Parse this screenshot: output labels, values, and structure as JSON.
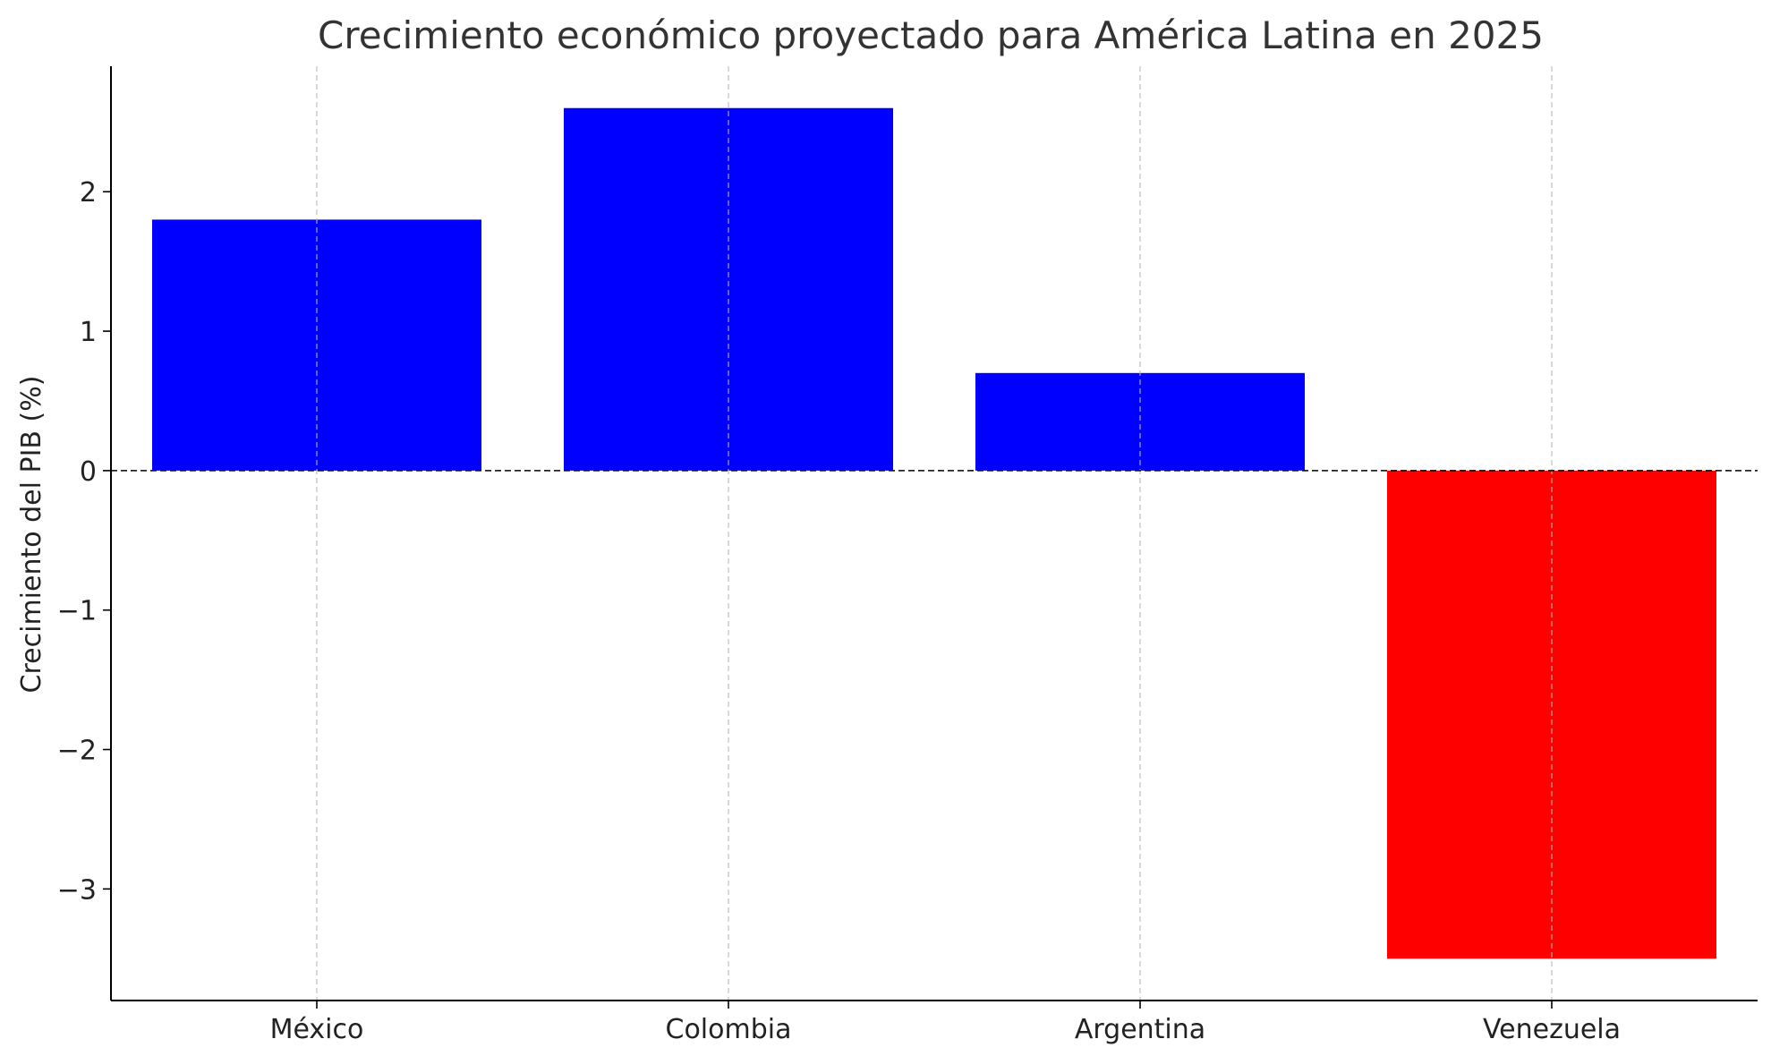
{
  "chart_data": {
    "type": "bar",
    "title": "Crecimiento económico proyectado para América Latina en 2025",
    "xlabel": "",
    "ylabel": "Crecimiento del PIB (%)",
    "categories": [
      "México",
      "Colombia",
      "Argentina",
      "Venezuela"
    ],
    "values": [
      1.8,
      2.6,
      0.7,
      -3.5
    ],
    "bar_colors": [
      "#0000ff",
      "#0000ff",
      "#0000ff",
      "#ff0000"
    ],
    "ylim": [
      -3.8,
      2.9
    ],
    "yticks": [
      2,
      1,
      0,
      -1,
      -2,
      -3
    ],
    "ytick_labels": [
      "2",
      "1",
      "0",
      "−1",
      "−2",
      "−3"
    ],
    "grid": "vertical dashed, light gray",
    "zero_line": "dashed black",
    "legend": "none"
  }
}
